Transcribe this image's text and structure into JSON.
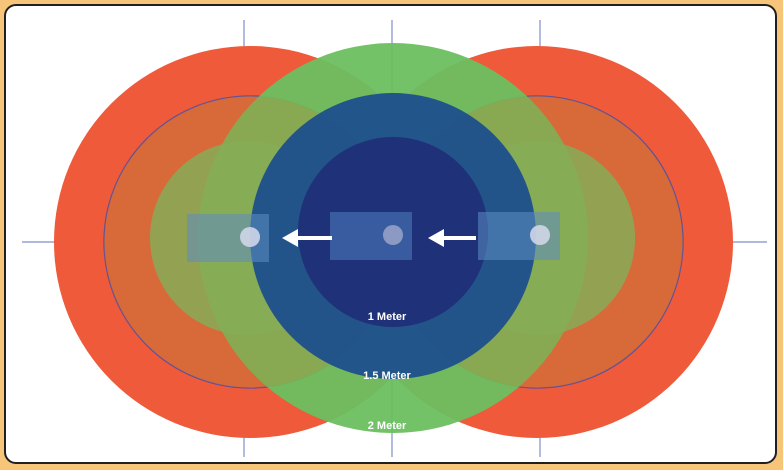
{
  "labels": {
    "one_meter": "1 Meter",
    "one_half_meter": "1.5 Meter",
    "two_meter": "2 Meter"
  },
  "colors": {
    "background": "#f7c57a",
    "frame_border": "#1f1f1f",
    "zone_red": "#ef5a3a",
    "zone_green": "#6cbf60",
    "zone_blue_mid": "#1e4f8c",
    "zone_blue_inner": "#1f2f78",
    "arrow": "#ffffff"
  },
  "icons": [
    "arrow-left-icon",
    "arrow-left-icon"
  ]
}
